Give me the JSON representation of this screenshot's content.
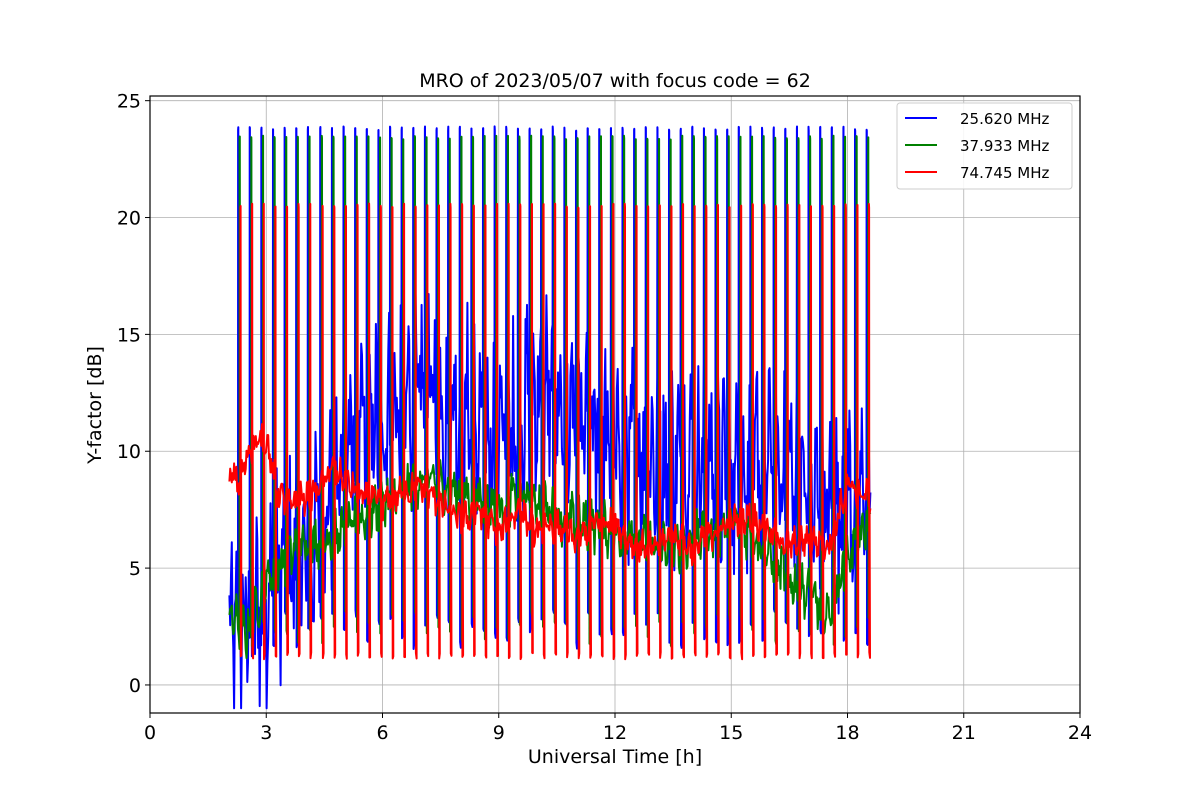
{
  "chart_data": {
    "type": "line",
    "title": "MRO of 2023/05/07 with focus code = 62",
    "xlabel": "Universal Time [h]",
    "ylabel": "Y-factor [dB]",
    "xlim": [
      0,
      24
    ],
    "ylim": [
      -1.2,
      25.2
    ],
    "xticks": [
      0,
      3,
      6,
      9,
      12,
      15,
      18,
      21,
      24
    ],
    "yticks": [
      0,
      5,
      10,
      15,
      20,
      25
    ],
    "grid": true,
    "legend_position": "top-right",
    "x_start": 2.05,
    "x_end": 18.6,
    "series": [
      {
        "name": "25.620 MHz",
        "color": "#0000ff",
        "peak_level": 23.9,
        "spike_period_h": 0.3,
        "spike_phase_h": 0.22,
        "baseline_x": [
          2.05,
          2.5,
          3,
          3.5,
          4,
          4.5,
          5,
          5.5,
          6,
          6.5,
          7,
          7.5,
          8,
          8.5,
          9,
          9.5,
          10,
          10.5,
          11,
          11.5,
          12,
          12.5,
          13,
          13.5,
          14,
          14.5,
          15,
          15.5,
          16,
          16.5,
          17,
          17.5,
          18,
          18.6
        ],
        "baseline_y": [
          2.0,
          2.5,
          3.8,
          5.0,
          5.5,
          7.0,
          9.5,
          10.5,
          11.5,
          12.0,
          12.5,
          12.2,
          11.8,
          11.0,
          10.5,
          11.5,
          12.5,
          12.0,
          11.0,
          10.5,
          10.2,
          10.0,
          9.8,
          9.5,
          9.5,
          9.2,
          9.0,
          9.5,
          10.0,
          9.0,
          8.0,
          7.0,
          8.0,
          8.5
        ],
        "amplitude": 3.2
      },
      {
        "name": "37.933 MHz",
        "color": "#008000",
        "peak_level": 23.5,
        "spike_period_h": 0.3,
        "spike_phase_h": 0.26,
        "baseline_x": [
          2.05,
          2.5,
          3,
          3.5,
          4,
          4.5,
          5,
          5.5,
          6,
          6.5,
          7,
          7.5,
          8,
          8.5,
          9,
          9.5,
          10,
          10.5,
          11,
          11.5,
          12,
          12.5,
          13,
          13.5,
          14,
          14.5,
          15,
          15.5,
          16,
          16.5,
          17,
          17.5,
          18,
          18.6
        ],
        "baseline_y": [
          3.0,
          2.2,
          4.5,
          5.5,
          6.0,
          6.3,
          6.5,
          7.2,
          7.8,
          8.2,
          8.8,
          8.5,
          8.2,
          8.0,
          7.5,
          8.2,
          7.8,
          7.2,
          7.0,
          6.8,
          6.5,
          6.2,
          6.0,
          5.8,
          6.2,
          6.5,
          7.0,
          6.5,
          5.5,
          4.5,
          3.8,
          3.0,
          5.5,
          7.0
        ],
        "amplitude": 0.8
      },
      {
        "name": "74.745 MHz",
        "color": "#ff0000",
        "peak_level": 20.6,
        "spike_period_h": 0.3,
        "spike_phase_h": 0.28,
        "min_level": 1.1,
        "baseline_x": [
          2.05,
          2.3,
          2.6,
          3,
          3.3,
          3.6,
          4,
          4.3,
          4.7,
          5,
          5.5,
          6,
          6.5,
          7,
          7.5,
          8,
          8.5,
          9,
          9.5,
          10,
          10.5,
          11,
          11.5,
          12,
          12.5,
          13,
          13.5,
          14,
          14.5,
          15,
          15.5,
          16,
          16.5,
          17,
          17.5,
          18,
          18.6
        ],
        "baseline_y": [
          9.0,
          8.7,
          10.2,
          10.5,
          8.2,
          7.8,
          8.0,
          8.3,
          9.3,
          8.8,
          8.0,
          7.8,
          8.2,
          8.5,
          7.8,
          7.0,
          7.5,
          6.5,
          7.5,
          6.5,
          6.8,
          6.2,
          7.0,
          6.8,
          6.0,
          5.8,
          6.5,
          5.8,
          6.5,
          7.0,
          7.2,
          6.5,
          6.0,
          6.2,
          6.0,
          8.5,
          8.0
        ],
        "amplitude": 0.5
      }
    ]
  }
}
